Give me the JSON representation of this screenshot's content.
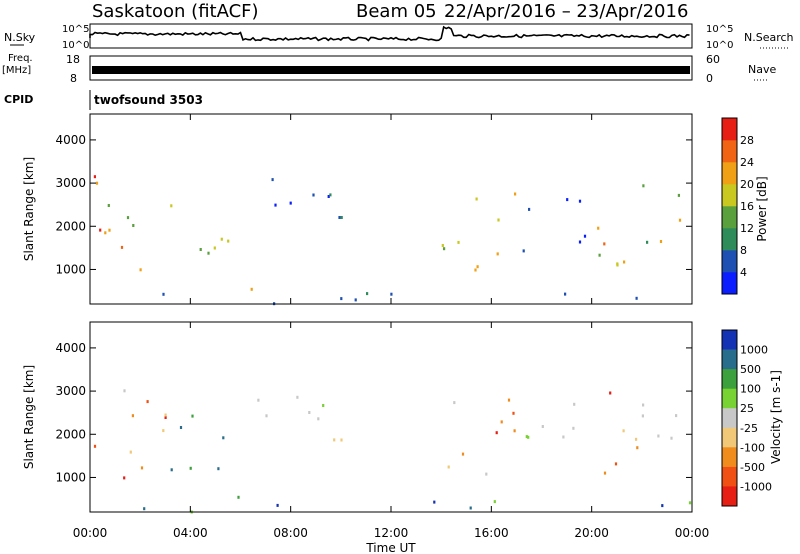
{
  "header": {
    "station": "Saskatoon (fitACF)",
    "beam": "Beam 05",
    "daterange": "22/Apr/2016 – 23/Apr/2016"
  },
  "strip_labels": {
    "nsky": "N.Sky",
    "nsky_hi": "10^5",
    "nsky_lo": "10^0",
    "nsearch": "N.Search",
    "nsearch_hi": "10^5",
    "nsearch_lo": "10^0",
    "freq": "Freq.",
    "freq_unit": "[MHz]",
    "freq_hi": "18",
    "freq_lo": "8",
    "nave": "Nave",
    "nave_hi": "60",
    "nave_lo": "0",
    "cpid": "CPID",
    "cpid_value": "twofsound 3503"
  },
  "xaxis": {
    "title": "Time UT",
    "ticks": [
      "00:00",
      "04:00",
      "08:00",
      "12:00",
      "16:00",
      "20:00",
      "00:00"
    ]
  },
  "chart_data": [
    {
      "type": "heatmap",
      "title": "",
      "xlabel": "Time UT",
      "ylabel": "Slant Range [km]",
      "xlim": [
        0,
        24
      ],
      "ylim": [
        200,
        4600
      ],
      "yticks": [
        "1000",
        "2000",
        "3000",
        "4000"
      ],
      "colorbar": {
        "label": "Power [dB]",
        "range": [
          0,
          32
        ],
        "ticks": [
          "4",
          "8",
          "12",
          "16",
          "20",
          "24",
          "28"
        ],
        "colors": [
          "#0a1eff",
          "#1e50b4",
          "#2e8c5a",
          "#5aa03c",
          "#c8c820",
          "#f0a014",
          "#f06414",
          "#e61e14"
        ]
      },
      "echo_regions": [
        {
          "t0": 0.0,
          "t1": 3.0,
          "r0": 800,
          "r1": 3300,
          "level": "high"
        },
        {
          "t0": 3.0,
          "t1": 5.5,
          "r0": 900,
          "r1": 2600,
          "level": "high"
        },
        {
          "t0": 5.5,
          "t1": 7.0,
          "r0": 300,
          "r1": 900,
          "level": "mid"
        },
        {
          "t0": 6.0,
          "t1": 9.0,
          "r0": 2400,
          "r1": 3400,
          "level": "low"
        },
        {
          "t0": 9.0,
          "t1": 11.0,
          "r0": 1500,
          "r1": 3100,
          "level": "low"
        },
        {
          "t0": 14.0,
          "t1": 17.0,
          "r0": 800,
          "r1": 2900,
          "level": "mid"
        },
        {
          "t0": 17.0,
          "t1": 20.0,
          "r0": 1400,
          "r1": 2800,
          "level": "low"
        },
        {
          "t0": 20.0,
          "t1": 22.0,
          "r0": 1000,
          "r1": 3000,
          "level": "high"
        },
        {
          "t0": 22.0,
          "t1": 24.0,
          "r0": 1500,
          "r1": 3400,
          "level": "mid"
        },
        {
          "t0": 0.0,
          "t1": 24.0,
          "r0": 200,
          "r1": 450,
          "level": "low"
        }
      ]
    },
    {
      "type": "heatmap",
      "title": "",
      "xlabel": "Time UT",
      "ylabel": "Slant Range [km]",
      "xlim": [
        0,
        24
      ],
      "ylim": [
        200,
        4600
      ],
      "yticks": [
        "1000",
        "2000",
        "3000",
        "4000"
      ],
      "colorbar": {
        "label": "Velocity [m s-1]",
        "ticks": [
          "1000",
          "500",
          "100",
          "25",
          "-25",
          "-100",
          "-500",
          "-1000"
        ],
        "colors": [
          "#1432b4",
          "#286e8c",
          "#3ca03c",
          "#78d232",
          "#c8c8c8",
          "#f0c878",
          "#f08c1e",
          "#f05014",
          "#e61e14"
        ]
      },
      "echo_regions": [
        {
          "t0": 0.0,
          "t1": 3.0,
          "r0": 800,
          "r1": 3300,
          "level": "neg"
        },
        {
          "t0": 3.0,
          "t1": 5.5,
          "r0": 900,
          "r1": 2600,
          "level": "pos"
        },
        {
          "t0": 5.5,
          "t1": 7.0,
          "r0": 300,
          "r1": 900,
          "level": "pos"
        },
        {
          "t0": 6.0,
          "t1": 9.0,
          "r0": 2400,
          "r1": 3400,
          "level": "zero"
        },
        {
          "t0": 9.0,
          "t1": 11.0,
          "r0": 1500,
          "r1": 3100,
          "level": "zero"
        },
        {
          "t0": 14.0,
          "t1": 17.0,
          "r0": 800,
          "r1": 2900,
          "level": "neg"
        },
        {
          "t0": 17.0,
          "t1": 20.0,
          "r0": 1400,
          "r1": 2800,
          "level": "zero"
        },
        {
          "t0": 20.0,
          "t1": 22.0,
          "r0": 1000,
          "r1": 3000,
          "level": "neg"
        },
        {
          "t0": 22.0,
          "t1": 24.0,
          "r0": 1500,
          "r1": 3400,
          "level": "zero"
        },
        {
          "t0": 0.0,
          "t1": 24.0,
          "r0": 200,
          "r1": 450,
          "level": "pos"
        }
      ]
    }
  ]
}
